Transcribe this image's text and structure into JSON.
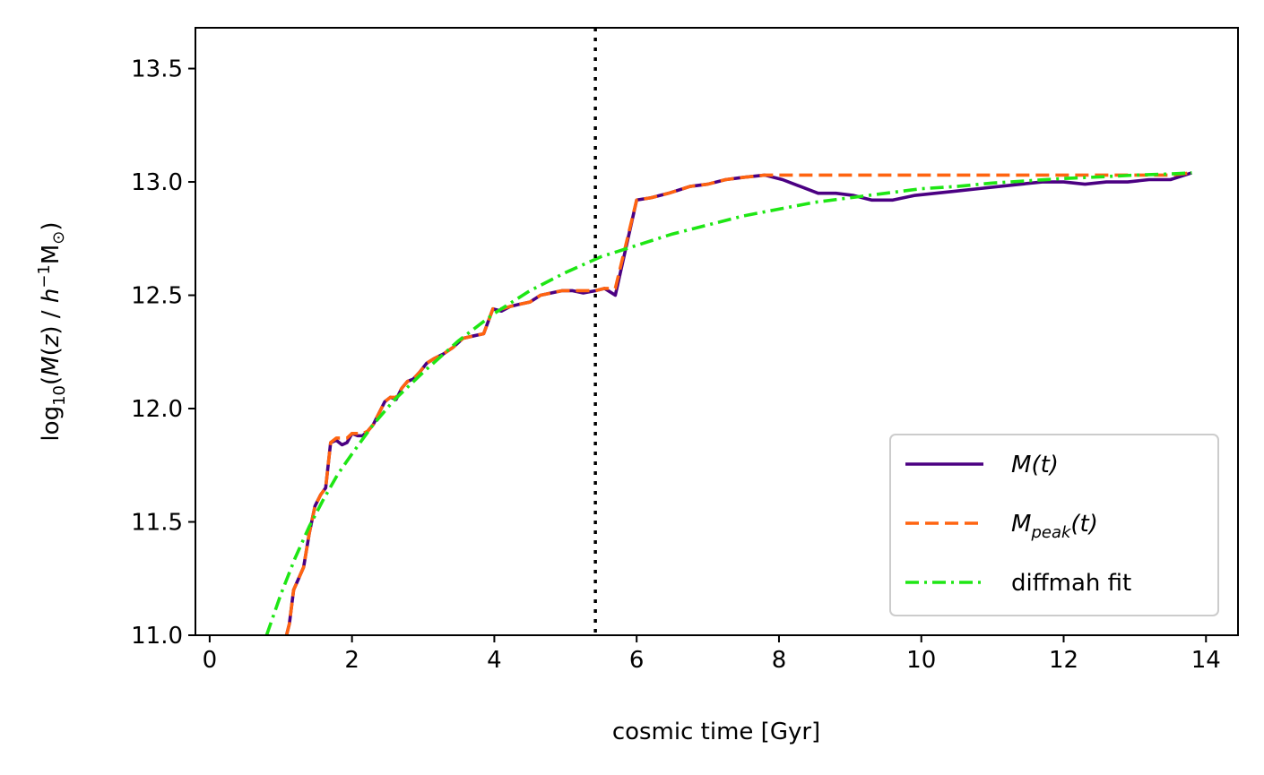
{
  "chart_data": {
    "type": "line",
    "xlabel": "cosmic time [Gyr]",
    "ylabel": "log10(M(z) / h−1M⊙)",
    "ylabel_parts": {
      "prefix": "log",
      "sub": "10",
      "open": "(",
      "M": "M",
      "z_open": "(",
      "z": "z",
      "z_close": ")",
      "slash": " / ",
      "h": "h",
      "sup": "−1",
      "msun": "M",
      "sun_sub": "⊙",
      "close": ")"
    },
    "xlim": [
      -0.2,
      14.45
    ],
    "ylim": [
      11.0,
      13.68
    ],
    "xticks": [
      0,
      2,
      4,
      6,
      8,
      10,
      12,
      14
    ],
    "yticks": [
      11.0,
      11.5,
      12.0,
      12.5,
      13.0,
      13.5
    ],
    "xtick_labels": [
      "0",
      "2",
      "4",
      "6",
      "8",
      "10",
      "12",
      "14"
    ],
    "ytick_labels": [
      "11.0",
      "11.5",
      "12.0",
      "12.5",
      "13.0",
      "13.5"
    ],
    "grid": false,
    "legend_position": "bottom-right",
    "vline": {
      "x": 5.42,
      "style": "dotted",
      "color": "#000000"
    },
    "series": [
      {
        "name": "M(t)",
        "legend_label": {
          "main": "M",
          "sub": "",
          "tail": "(t)"
        },
        "color": "#4b0082",
        "style": "solid",
        "x": [
          1.08,
          1.12,
          1.18,
          1.25,
          1.32,
          1.4,
          1.48,
          1.56,
          1.63,
          1.7,
          1.78,
          1.86,
          1.93,
          2.0,
          2.08,
          2.15,
          2.22,
          2.3,
          2.38,
          2.46,
          2.54,
          2.62,
          2.7,
          2.78,
          2.86,
          2.95,
          3.05,
          3.15,
          3.28,
          3.42,
          3.56,
          3.7,
          3.85,
          3.98,
          4.1,
          4.22,
          4.35,
          4.5,
          4.65,
          4.8,
          4.95,
          5.1,
          5.25,
          5.42,
          5.55,
          5.7,
          6.0,
          6.2,
          6.45,
          6.75,
          7.0,
          7.25,
          7.5,
          7.8,
          8.05,
          8.3,
          8.55,
          8.8,
          9.05,
          9.3,
          9.6,
          9.9,
          10.2,
          10.5,
          10.8,
          11.1,
          11.4,
          11.7,
          12.0,
          12.3,
          12.6,
          12.9,
          13.2,
          13.5,
          13.8
        ],
        "y": [
          11.0,
          11.05,
          11.2,
          11.25,
          11.3,
          11.45,
          11.57,
          11.62,
          11.65,
          11.85,
          11.86,
          11.84,
          11.85,
          11.89,
          11.88,
          11.88,
          11.9,
          11.93,
          11.98,
          12.03,
          12.05,
          12.04,
          12.09,
          12.12,
          12.13,
          12.16,
          12.2,
          12.22,
          12.24,
          12.27,
          12.31,
          12.32,
          12.33,
          12.44,
          12.43,
          12.45,
          12.46,
          12.47,
          12.5,
          12.51,
          12.52,
          12.52,
          12.51,
          12.52,
          12.53,
          12.5,
          12.92,
          12.93,
          12.95,
          12.98,
          12.99,
          13.01,
          13.02,
          13.03,
          13.01,
          12.98,
          12.95,
          12.95,
          12.94,
          12.92,
          12.92,
          12.94,
          12.95,
          12.96,
          12.97,
          12.98,
          12.99,
          13.0,
          13.0,
          12.99,
          13.0,
          13.0,
          13.01,
          13.01,
          13.04
        ]
      },
      {
        "name": "Mpeak(t)",
        "legend_label": {
          "main": "M",
          "sub": "peak",
          "tail": "(t)"
        },
        "color": "#ff6410",
        "style": "dashed",
        "x": [
          1.08,
          1.12,
          1.18,
          1.25,
          1.32,
          1.4,
          1.48,
          1.56,
          1.63,
          1.7,
          1.78,
          1.86,
          1.93,
          2.0,
          2.08,
          2.15,
          2.22,
          2.3,
          2.38,
          2.46,
          2.54,
          2.62,
          2.7,
          2.78,
          2.86,
          2.95,
          3.05,
          3.15,
          3.28,
          3.42,
          3.56,
          3.7,
          3.85,
          3.98,
          4.1,
          4.22,
          4.35,
          4.5,
          4.65,
          4.8,
          4.95,
          5.1,
          5.25,
          5.42,
          5.55,
          5.7,
          6.0,
          6.2,
          6.45,
          6.75,
          7.0,
          7.25,
          7.5,
          7.8,
          8.05,
          8.3,
          8.55,
          8.8,
          9.05,
          9.3,
          9.6,
          9.9,
          10.2,
          10.5,
          10.8,
          11.1,
          11.4,
          11.7,
          12.0,
          12.3,
          12.6,
          12.9,
          13.2,
          13.5,
          13.8
        ],
        "y": [
          11.0,
          11.05,
          11.2,
          11.25,
          11.3,
          11.45,
          11.57,
          11.62,
          11.65,
          11.85,
          11.87,
          11.87,
          11.87,
          11.89,
          11.89,
          11.89,
          11.9,
          11.93,
          11.98,
          12.03,
          12.05,
          12.05,
          12.09,
          12.12,
          12.13,
          12.16,
          12.2,
          12.22,
          12.24,
          12.27,
          12.31,
          12.32,
          12.33,
          12.44,
          12.44,
          12.45,
          12.46,
          12.47,
          12.5,
          12.51,
          12.52,
          12.52,
          12.52,
          12.52,
          12.53,
          12.53,
          12.92,
          12.93,
          12.95,
          12.98,
          12.99,
          13.01,
          13.02,
          13.03,
          13.03,
          13.03,
          13.03,
          13.03,
          13.03,
          13.03,
          13.03,
          13.03,
          13.03,
          13.03,
          13.03,
          13.03,
          13.03,
          13.03,
          13.03,
          13.03,
          13.03,
          13.03,
          13.03,
          13.03,
          13.04
        ]
      },
      {
        "name": "diffmah fit",
        "legend_label": {
          "main": "diffmah fit",
          "sub": "",
          "tail": ""
        },
        "color": "#1ee614",
        "style": "dashdot",
        "x": [
          0.8,
          1.0,
          1.2,
          1.4,
          1.6,
          1.8,
          2.0,
          2.3,
          2.6,
          3.0,
          3.5,
          4.0,
          4.5,
          5.0,
          5.5,
          6.0,
          6.5,
          7.0,
          7.5,
          8.0,
          8.5,
          9.0,
          9.5,
          10.0,
          10.5,
          11.0,
          11.5,
          12.0,
          12.5,
          13.0,
          13.5,
          13.8
        ],
        "y": [
          11.0,
          11.18,
          11.34,
          11.48,
          11.6,
          11.71,
          11.8,
          11.93,
          12.04,
          12.16,
          12.3,
          12.42,
          12.52,
          12.6,
          12.67,
          12.72,
          12.77,
          12.81,
          12.85,
          12.88,
          12.91,
          12.93,
          12.95,
          12.97,
          12.98,
          12.995,
          13.005,
          13.015,
          13.022,
          13.03,
          13.035,
          13.04
        ]
      }
    ]
  }
}
